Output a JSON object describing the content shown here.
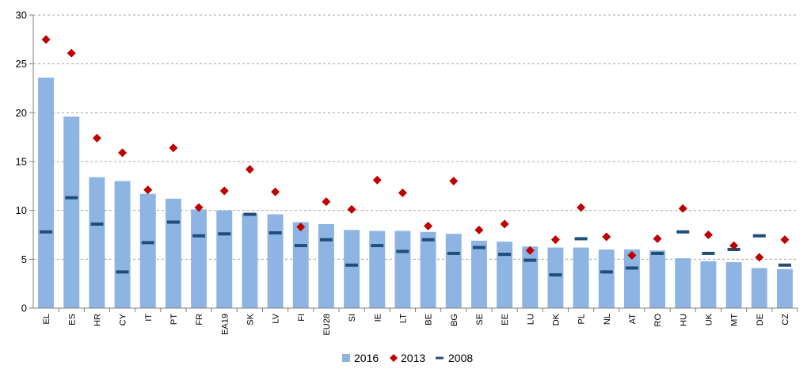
{
  "chart_data": {
    "type": "bar",
    "title": "",
    "xlabel": "",
    "ylabel": "",
    "ylim": [
      0,
      30
    ],
    "yticks": [
      0,
      5,
      10,
      15,
      20,
      25,
      30
    ],
    "grid": true,
    "legend_position": "bottom",
    "categories": [
      "EL",
      "ES",
      "HR",
      "CY",
      "IT",
      "PT",
      "FR",
      "EA19",
      "SK",
      "LV",
      "FI",
      "EU28",
      "SI",
      "IE",
      "LT",
      "BE",
      "BG",
      "SE",
      "EE",
      "LU",
      "DK",
      "PL",
      "NL",
      "AT",
      "RO",
      "HU",
      "UK",
      "MT",
      "DE",
      "CZ"
    ],
    "series": [
      {
        "name": "2016",
        "kind": "bar",
        "color": "#8EB4E3",
        "values": [
          23.6,
          19.6,
          13.4,
          13.0,
          11.7,
          11.2,
          10.1,
          10.0,
          9.7,
          9.6,
          8.8,
          8.6,
          8.0,
          7.9,
          7.9,
          7.8,
          7.6,
          6.9,
          6.8,
          6.3,
          6.2,
          6.2,
          6.0,
          6.0,
          5.9,
          5.1,
          4.8,
          4.7,
          4.1,
          4.0
        ]
      },
      {
        "name": "2013",
        "kind": "marker-diamond",
        "color": "#C00000",
        "values": [
          27.5,
          26.1,
          17.4,
          15.9,
          12.1,
          16.4,
          10.3,
          12.0,
          14.2,
          11.9,
          8.3,
          10.9,
          10.1,
          13.1,
          11.8,
          8.4,
          13.0,
          8.0,
          8.6,
          5.9,
          7.0,
          10.3,
          7.3,
          5.4,
          7.1,
          10.2,
          7.5,
          6.4,
          5.2,
          7.0
        ]
      },
      {
        "name": "2008",
        "kind": "marker-dash",
        "color": "#1F4E79",
        "values": [
          7.8,
          11.3,
          8.6,
          3.7,
          6.7,
          8.8,
          7.4,
          7.6,
          9.6,
          7.7,
          6.4,
          7.0,
          4.4,
          6.4,
          5.8,
          7.0,
          5.6,
          6.2,
          5.5,
          4.9,
          3.4,
          7.1,
          3.7,
          4.1,
          5.6,
          7.8,
          5.6,
          6.0,
          7.4,
          4.4
        ]
      }
    ]
  }
}
